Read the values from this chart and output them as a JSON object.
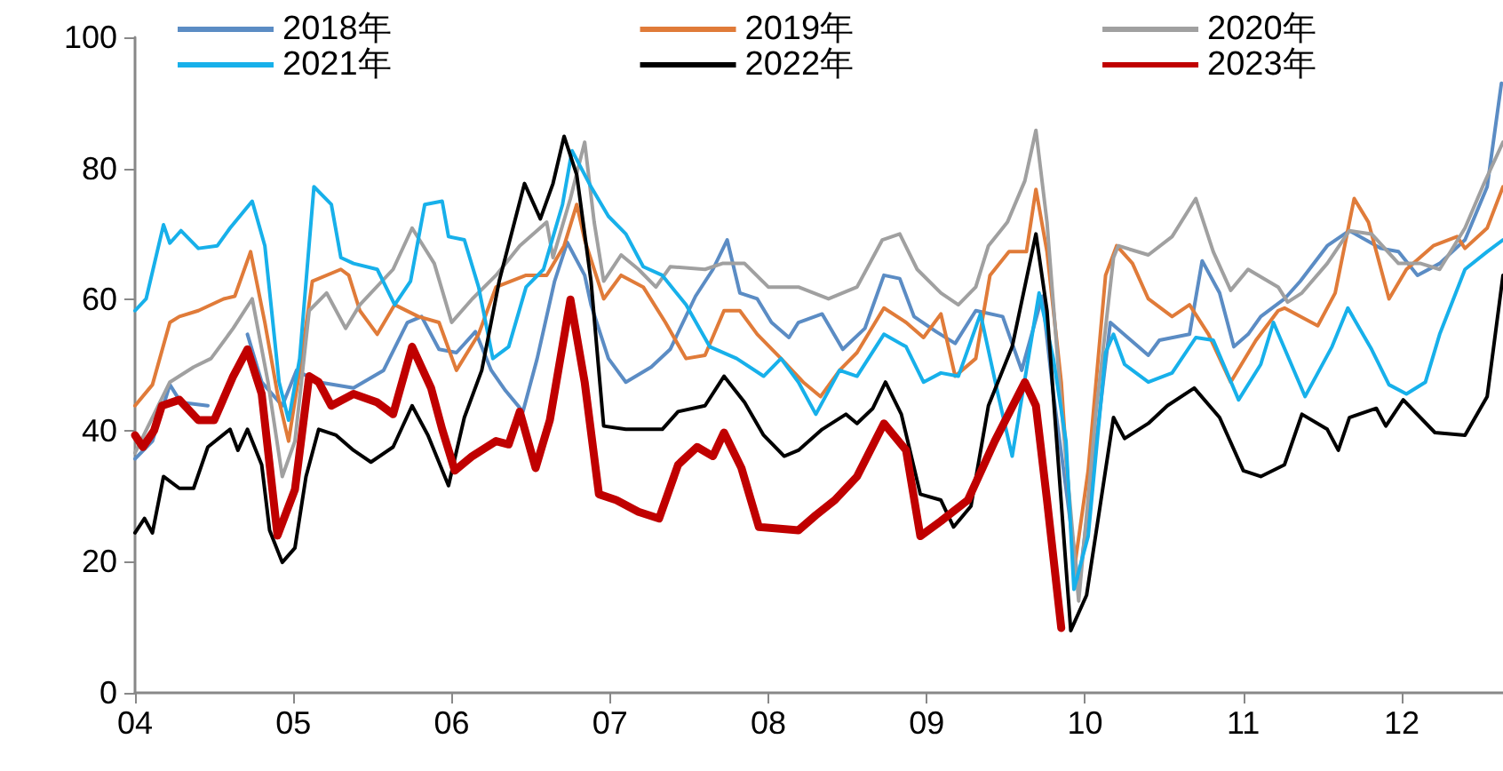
{
  "chart_data": {
    "type": "line",
    "xlim": [
      4,
      12.64
    ],
    "xticks": [
      {
        "value": 4,
        "label": "04"
      },
      {
        "value": 5,
        "label": "05"
      },
      {
        "value": 6,
        "label": "06"
      },
      {
        "value": 7,
        "label": "07"
      },
      {
        "value": 8,
        "label": "08"
      },
      {
        "value": 9,
        "label": "09"
      },
      {
        "value": 10,
        "label": "10"
      },
      {
        "value": 11,
        "label": "11"
      },
      {
        "value": 12,
        "label": "12"
      }
    ],
    "ylim": [
      0,
      100
    ],
    "yticks": [
      0,
      20,
      40,
      60,
      80,
      100
    ],
    "grid": false,
    "legend": "top",
    "marker": "none",
    "line_style": "solid",
    "series": [
      {
        "name": "2018年",
        "color": "#5b8cc4",
        "x": [
          4.0,
          4.11,
          4.22,
          4.29,
          4.46,
          4.62,
          4.71,
          4.8,
          4.93,
          5.02,
          5.16,
          5.38,
          5.57,
          5.72,
          5.81,
          5.92,
          6.03,
          6.15,
          6.25,
          6.34,
          6.45,
          6.54,
          6.65,
          6.73,
          6.84,
          6.88,
          6.99,
          7.1,
          7.26,
          7.38,
          7.54,
          7.65,
          7.74,
          7.82,
          7.93,
          8.02,
          8.13,
          8.19,
          8.34,
          8.47,
          8.61,
          8.73,
          8.83,
          8.92,
          9.06,
          9.18,
          9.31,
          9.48,
          9.6,
          9.73,
          9.8,
          9.88,
          9.96,
          10.04,
          10.16,
          10.4,
          10.47,
          10.66,
          10.74,
          10.85,
          10.94,
          11.03,
          11.11,
          11.26,
          11.36,
          11.53,
          11.67,
          11.87,
          11.98,
          12.1,
          12.24,
          12.4,
          12.54,
          12.63
        ],
        "values": [
          35.7,
          38.4,
          47,
          44.3,
          43.8,
          null,
          54.7,
          47.4,
          43.8,
          49.2,
          47.4,
          46.5,
          49.2,
          56.5,
          57.4,
          52.4,
          51.9,
          55.1,
          49.2,
          46.1,
          42.9,
          51,
          62.8,
          68.7,
          63.7,
          59.2,
          51,
          47.4,
          49.7,
          52.4,
          60.5,
          64.6,
          69.1,
          61,
          60.1,
          56.5,
          54.2,
          56.5,
          57.8,
          52.4,
          55.6,
          63.7,
          63.2,
          57.4,
          55.1,
          53.3,
          58.3,
          57.4,
          49.2,
          60.5,
          45.6,
          31.2,
          16.3,
          32.1,
          56.5,
          51.5,
          53.8,
          54.7,
          65.9,
          61,
          52.8,
          54.7,
          57.4,
          60.1,
          62.8,
          68.2,
          70.5,
          67.8,
          67.3,
          63.7,
          65.5,
          69.1,
          77.2,
          93
        ]
      },
      {
        "name": "2019年",
        "color": "#e07b39",
        "x": [
          4.0,
          4.11,
          4.22,
          4.28,
          4.4,
          4.56,
          4.63,
          4.73,
          4.82,
          4.9,
          4.97,
          5.04,
          5.12,
          5.3,
          5.35,
          5.42,
          5.53,
          5.64,
          5.79,
          5.92,
          6.03,
          6.17,
          6.28,
          6.47,
          6.6,
          6.71,
          6.79,
          6.84,
          6.96,
          7.07,
          7.21,
          7.35,
          7.48,
          7.6,
          7.72,
          7.82,
          7.93,
          8.08,
          8.22,
          8.33,
          8.45,
          8.56,
          8.73,
          8.87,
          8.98,
          9.09,
          9.18,
          9.31,
          9.4,
          9.52,
          9.63,
          9.69,
          9.76,
          9.85,
          9.93,
          10.02,
          10.13,
          10.2,
          10.3,
          10.4,
          10.55,
          10.66,
          10.78,
          10.92,
          11.08,
          11.22,
          11.26,
          11.47,
          11.58,
          11.7,
          11.79,
          11.92,
          12.03,
          12.2,
          12.35,
          12.4,
          12.54,
          12.64
        ],
        "values": [
          43.8,
          47,
          56.5,
          57.4,
          58.3,
          60.1,
          60.5,
          67.3,
          56.5,
          45.6,
          38.4,
          49.2,
          62.8,
          64.6,
          63.7,
          58.3,
          54.7,
          59.2,
          57.4,
          56.5,
          49.2,
          54.7,
          61.9,
          63.7,
          63.7,
          68.2,
          74.5,
          69.1,
          60.1,
          63.7,
          61.9,
          56.5,
          51,
          51.5,
          58.3,
          58.3,
          54.7,
          51,
          47.4,
          45.2,
          49.2,
          51.9,
          58.7,
          56.5,
          54.2,
          57.8,
          48.3,
          51,
          63.7,
          67.3,
          67.3,
          76.8,
          67.3,
          47.4,
          18.5,
          33.9,
          63.7,
          68.2,
          65.5,
          60.1,
          57.4,
          59.2,
          54.7,
          47.4,
          53.8,
          58.3,
          58.7,
          56,
          61,
          75.4,
          71.8,
          60.1,
          64.6,
          68.2,
          69.6,
          67.8,
          70.9,
          77.2
        ]
      },
      {
        "name": "2020年",
        "color": "#a0a0a0",
        "x": [
          4.0,
          4.22,
          4.37,
          4.48,
          4.62,
          4.74,
          4.84,
          4.93,
          5.01,
          5.1,
          5.21,
          5.33,
          5.42,
          5.63,
          5.75,
          5.89,
          6.0,
          6.13,
          6.28,
          6.43,
          6.6,
          6.64,
          6.75,
          6.84,
          6.9,
          6.96,
          7.07,
          7.18,
          7.29,
          7.38,
          7.6,
          7.71,
          7.85,
          8.0,
          8.19,
          8.38,
          8.56,
          8.72,
          8.83,
          8.94,
          9.09,
          9.2,
          9.31,
          9.39,
          9.51,
          9.62,
          9.69,
          9.76,
          9.85,
          9.96,
          10.07,
          10.18,
          10.21,
          10.4,
          10.55,
          10.7,
          10.81,
          10.92,
          11.03,
          11.22,
          11.28,
          11.37,
          11.53,
          11.67,
          11.81,
          11.98,
          12.12,
          12.24,
          12.4,
          12.52,
          12.64
        ],
        "values": [
          36.6,
          47.4,
          49.7,
          51,
          55.6,
          60.1,
          47.4,
          33,
          38.4,
          58.3,
          61,
          55.6,
          59.2,
          64.6,
          70.9,
          65.5,
          56.5,
          60.1,
          63.7,
          68.2,
          71.8,
          66.4,
          75.4,
          84,
          71.8,
          62.8,
          66.8,
          64.6,
          61.9,
          65,
          64.6,
          65.5,
          65.5,
          61.9,
          61.9,
          60.1,
          61.9,
          69.1,
          70,
          64.6,
          61,
          59.2,
          61.9,
          68.2,
          71.8,
          78.1,
          85.8,
          71.8,
          43.8,
          14,
          42.9,
          66.4,
          68.2,
          66.8,
          69.6,
          75.4,
          67.3,
          61.4,
          64.6,
          61.9,
          59.6,
          61,
          65.5,
          70.5,
          70,
          65.5,
          65.5,
          64.6,
          70.9,
          77.7,
          84
        ]
      },
      {
        "name": "2021年",
        "color": "#17b0ea",
        "x": [
          4.0,
          4.07,
          4.18,
          4.22,
          4.29,
          4.4,
          4.52,
          4.6,
          4.74,
          4.82,
          4.91,
          4.97,
          5.04,
          5.13,
          5.24,
          5.3,
          5.38,
          5.53,
          5.64,
          5.74,
          5.83,
          5.94,
          5.98,
          6.08,
          6.17,
          6.26,
          6.36,
          6.47,
          6.58,
          6.7,
          6.76,
          6.88,
          6.99,
          7.1,
          7.21,
          7.33,
          7.48,
          7.63,
          7.8,
          7.97,
          8.08,
          8.19,
          8.3,
          8.45,
          8.56,
          8.73,
          8.87,
          8.98,
          9.09,
          9.2,
          9.34,
          9.45,
          9.54,
          9.71,
          9.8,
          9.88,
          9.93,
          10.02,
          10.13,
          10.18,
          10.25,
          10.4,
          10.55,
          10.7,
          10.81,
          10.97,
          11.11,
          11.19,
          11.39,
          11.56,
          11.66,
          11.81,
          11.92,
          12.03,
          12.15,
          12.24,
          12.4,
          12.54,
          12.64
        ],
        "values": [
          58.3,
          60.1,
          71.4,
          68.6,
          70.5,
          67.8,
          68.2,
          70.9,
          75,
          68.2,
          47.4,
          41.6,
          51,
          77.2,
          74.5,
          66.4,
          65.5,
          64.6,
          59.2,
          62.8,
          74.5,
          75,
          69.6,
          69.1,
          61.9,
          51,
          52.8,
          61.9,
          64.6,
          74.5,
          82.7,
          77.2,
          72.7,
          70,
          65,
          63.7,
          59.2,
          52.8,
          51,
          48.3,
          51,
          47.4,
          42.5,
          49.2,
          48.3,
          54.7,
          52.8,
          47.4,
          48.8,
          48.3,
          57.8,
          45.6,
          36.1,
          61,
          51,
          38.4,
          15.8,
          23.9,
          51.9,
          54.7,
          50.1,
          47.4,
          48.8,
          54.2,
          53.8,
          44.7,
          50.1,
          56.5,
          45.2,
          52.8,
          58.7,
          52.4,
          47,
          45.6,
          47.4,
          54.7,
          64.6,
          67.3,
          69.1
        ]
      },
      {
        "name": "2022年",
        "color": "#000000",
        "x": [
          4.0,
          4.06,
          4.11,
          4.18,
          4.28,
          4.37,
          4.46,
          4.6,
          4.65,
          4.71,
          4.8,
          4.85,
          4.93,
          5.01,
          5.08,
          5.16,
          5.27,
          5.38,
          5.49,
          5.63,
          5.75,
          5.85,
          5.98,
          6.08,
          6.19,
          6.3,
          6.46,
          6.56,
          6.64,
          6.71,
          6.79,
          6.81,
          6.88,
          6.96,
          7.1,
          7.33,
          7.43,
          7.6,
          7.72,
          7.85,
          7.97,
          8.1,
          8.19,
          8.34,
          8.49,
          8.56,
          8.66,
          8.74,
          8.84,
          8.96,
          9.09,
          9.17,
          9.28,
          9.39,
          9.54,
          9.69,
          9.76,
          9.91,
          10.01,
          10.18,
          10.25,
          10.4,
          10.52,
          10.69,
          10.85,
          11.0,
          11.11,
          11.26,
          11.37,
          11.53,
          11.6,
          11.67,
          11.84,
          11.9,
          12.01,
          12.21,
          12.4,
          12.54,
          12.64
        ],
        "values": [
          24.4,
          26.6,
          24.4,
          33,
          31.2,
          31.2,
          37.5,
          40.2,
          37,
          40.2,
          34.8,
          24.8,
          19.9,
          22.1,
          33,
          40.2,
          39.3,
          37,
          35.2,
          37.5,
          43.8,
          39.3,
          31.6,
          42,
          49.2,
          62.8,
          77.7,
          72.3,
          77.7,
          84.9,
          79,
          75.4,
          62.8,
          40.7,
          40.2,
          40.2,
          42.9,
          43.8,
          48.3,
          44.3,
          39.3,
          36.1,
          37,
          40.2,
          42.5,
          41.1,
          43.4,
          47.4,
          42.5,
          30.3,
          29.4,
          25.3,
          28.5,
          43.8,
          52.8,
          70,
          58.3,
          9.5,
          14.9,
          42,
          38.8,
          41.1,
          43.8,
          46.5,
          42,
          33.9,
          33,
          34.8,
          42.5,
          40.2,
          37,
          42,
          43.4,
          40.7,
          44.7,
          39.7,
          39.3,
          45.2,
          63.7
        ]
      },
      {
        "name": "2023年",
        "color": "#c00000",
        "x": [
          4.0,
          4.05,
          4.12,
          4.17,
          4.28,
          4.4,
          4.5,
          4.62,
          4.71,
          4.8,
          4.9,
          5.01,
          5.1,
          5.16,
          5.24,
          5.38,
          5.53,
          5.63,
          5.75,
          5.87,
          5.94,
          6.02,
          6.13,
          6.28,
          6.36,
          6.43,
          6.53,
          6.62,
          6.75,
          6.84,
          6.93,
          7.04,
          7.18,
          7.31,
          7.43,
          7.55,
          7.65,
          7.72,
          7.83,
          7.94,
          8.19,
          8.3,
          8.42,
          8.56,
          8.73,
          8.87,
          8.96,
          9.09,
          9.26,
          9.43,
          9.62,
          9.69,
          9.76,
          9.85
        ],
        "values": [
          39.3,
          37.5,
          40,
          43.8,
          44.7,
          41.6,
          41.6,
          48.3,
          52.4,
          45.6,
          24,
          31,
          48.3,
          47.4,
          43.8,
          45.6,
          44.3,
          42.5,
          52.8,
          46.5,
          40.2,
          33.9,
          36.1,
          38.4,
          37.9,
          42.9,
          34.3,
          41.6,
          60,
          47.4,
          30.3,
          29.4,
          27.6,
          26.6,
          34.8,
          37.5,
          36.1,
          39.7,
          34.3,
          25.3,
          24.8,
          27.1,
          29.4,
          33,
          41.1,
          37,
          23.9,
          26.2,
          29.4,
          38.4,
          47.4,
          43.8,
          29.4,
          9.9
        ]
      }
    ]
  }
}
